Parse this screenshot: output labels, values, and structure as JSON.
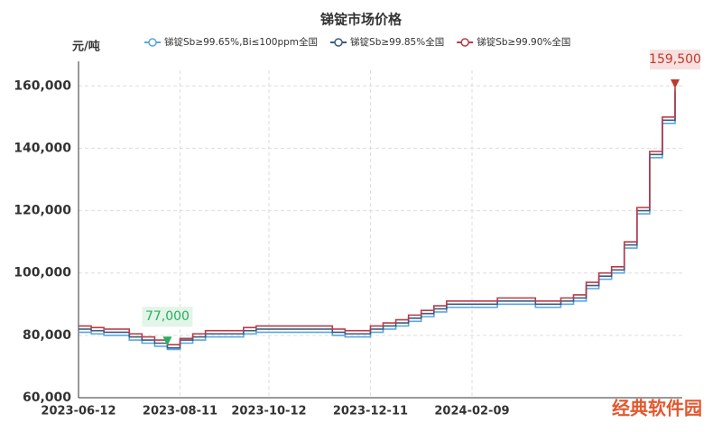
{
  "chart_data": {
    "type": "line",
    "title": "锑锭市场价格",
    "y_label": "元/吨",
    "categories": [
      "2023-06-12",
      "2023-06-19",
      "2023-06-26",
      "2023-07-03",
      "2023-07-10",
      "2023-07-17",
      "2023-07-24",
      "2023-07-31",
      "2023-08-11",
      "2023-08-18",
      "2023-08-25",
      "2023-09-01",
      "2023-09-08",
      "2023-09-15",
      "2023-09-22",
      "2023-10-12",
      "2023-10-19",
      "2023-10-26",
      "2023-11-02",
      "2023-11-09",
      "2023-11-16",
      "2023-11-23",
      "2023-11-30",
      "2023-12-11",
      "2023-12-18",
      "2023-12-25",
      "2024-01-02",
      "2024-01-09",
      "2024-01-16",
      "2024-01-23",
      "2024-01-30",
      "2024-02-09",
      "2024-02-23",
      "2024-03-01",
      "2024-03-08",
      "2024-03-15",
      "2024-03-22",
      "2024-03-29",
      "2024-04-08",
      "2024-04-15",
      "2024-04-22",
      "2024-04-29",
      "2024-05-08",
      "2024-05-15",
      "2024-05-22",
      "2024-05-29",
      "2024-06-05",
      "2024-06-12"
    ],
    "series": [
      {
        "name": "锑锭Sb≥99.65%,Bi≤100ppm全国",
        "color": "#5aa6e0",
        "values": [
          81000,
          80500,
          80000,
          80000,
          78500,
          77500,
          76500,
          75500,
          77500,
          78500,
          79500,
          79500,
          79500,
          80500,
          81000,
          81000,
          81000,
          81000,
          81000,
          81000,
          80000,
          79500,
          79500,
          81000,
          82000,
          83000,
          84500,
          86000,
          87500,
          89000,
          89000,
          89000,
          89000,
          90000,
          90000,
          90000,
          89000,
          89000,
          90000,
          91000,
          95000,
          98000,
          100000,
          108000,
          119000,
          137000,
          148000,
          157500
        ]
      },
      {
        "name": "锑锭Sb≥99.85%全国",
        "color": "#3d5a80",
        "values": [
          82000,
          81500,
          81000,
          81000,
          79500,
          78500,
          77500,
          76000,
          78500,
          79500,
          80500,
          80500,
          80500,
          81500,
          82000,
          82000,
          82000,
          82000,
          82000,
          82000,
          81000,
          80500,
          80500,
          82000,
          83000,
          84000,
          85500,
          87000,
          88500,
          90000,
          90000,
          90000,
          90000,
          91000,
          91000,
          91000,
          90000,
          90000,
          91000,
          92000,
          96000,
          99000,
          101000,
          109000,
          120000,
          138000,
          149000,
          158500
        ]
      },
      {
        "name": "锑锭Sb≥99.90%全国",
        "color": "#b83c47",
        "values": [
          83000,
          82500,
          82000,
          82000,
          80500,
          79500,
          78500,
          77000,
          79000,
          80500,
          81500,
          81500,
          81500,
          82500,
          83000,
          83000,
          83000,
          83000,
          83000,
          83000,
          82000,
          81500,
          81500,
          83000,
          84000,
          85000,
          86500,
          88000,
          89500,
          91000,
          91000,
          91000,
          91000,
          92000,
          92000,
          92000,
          91000,
          91000,
          92000,
          93000,
          97000,
          100000,
          102000,
          110000,
          121000,
          139000,
          150000,
          159500
        ],
        "value_labels": [
          null,
          null,
          null,
          null,
          null,
          null,
          null,
          "77,000",
          null,
          null,
          null,
          null,
          null,
          null,
          null,
          null,
          null,
          null,
          null,
          null,
          null,
          null,
          null,
          null,
          null,
          null,
          null,
          null,
          null,
          null,
          null,
          null,
          null,
          null,
          null,
          null,
          null,
          null,
          null,
          null,
          null,
          null,
          null,
          null,
          null,
          null,
          null,
          "159,500"
        ]
      }
    ],
    "ylim": [
      60000,
      165000
    ],
    "yticks": [
      {
        "value": 60000,
        "label": "60,000"
      },
      {
        "value": 80000,
        "label": "80,000"
      },
      {
        "value": 100000,
        "label": "100,000"
      },
      {
        "value": 120000,
        "label": "120,000"
      },
      {
        "value": 140000,
        "label": "140,000"
      },
      {
        "value": 160000,
        "label": "160,000"
      }
    ],
    "xticks": [
      "2023-06-12",
      "2023-08-11",
      "2023-10-12",
      "2023-12-11",
      "2024-02-09"
    ],
    "grid": true,
    "watermark": "经典软件园"
  }
}
